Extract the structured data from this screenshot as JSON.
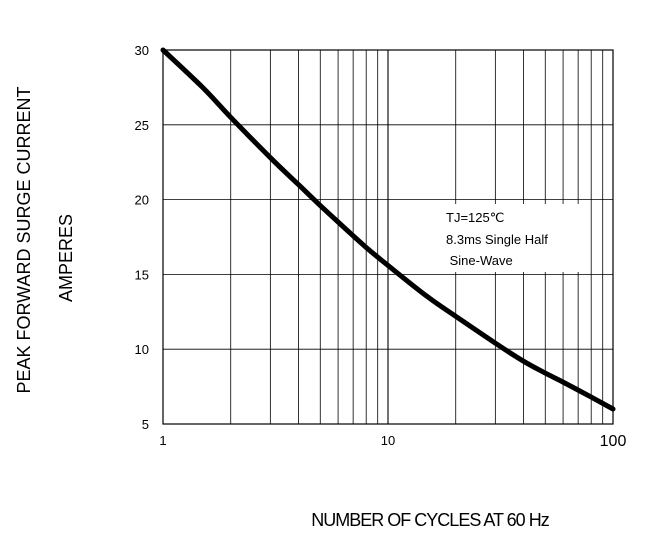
{
  "chart_data": {
    "type": "line",
    "x_scale": "log",
    "xlim": [
      1,
      100
    ],
    "ylim": [
      5,
      30
    ],
    "grid": true,
    "ylabel_lines": [
      "PEAK FORWARD SURGE CURRENT",
      "AMPERES"
    ],
    "xlabel": "NUMBER OF CYCLES AT 60 Hz",
    "x_ticks": [
      {
        "value": 1,
        "label": "1"
      },
      {
        "value": 10,
        "label": "10"
      },
      {
        "value": 100,
        "label": "100"
      }
    ],
    "y_ticks": [
      {
        "value": 5,
        "label": "5"
      },
      {
        "value": 10,
        "label": "10"
      },
      {
        "value": 15,
        "label": "15"
      },
      {
        "value": 20,
        "label": "20"
      },
      {
        "value": 25,
        "label": "25"
      },
      {
        "value": 30,
        "label": "30"
      }
    ],
    "annotation": {
      "lines": [
        "TJ=125℃",
        "8.3ms Single Half",
        " Sine-Wave"
      ]
    },
    "series": [
      {
        "x": [
          1,
          1.5,
          2,
          3,
          4,
          5,
          6,
          8,
          10,
          15,
          20,
          30,
          40,
          50,
          60,
          80,
          100
        ],
        "values": [
          30,
          27.5,
          25.5,
          22.8,
          21,
          19.6,
          18.5,
          16.8,
          15.6,
          13.5,
          12.2,
          10.4,
          9.2,
          8.4,
          7.8,
          6.8,
          6
        ]
      }
    ]
  }
}
